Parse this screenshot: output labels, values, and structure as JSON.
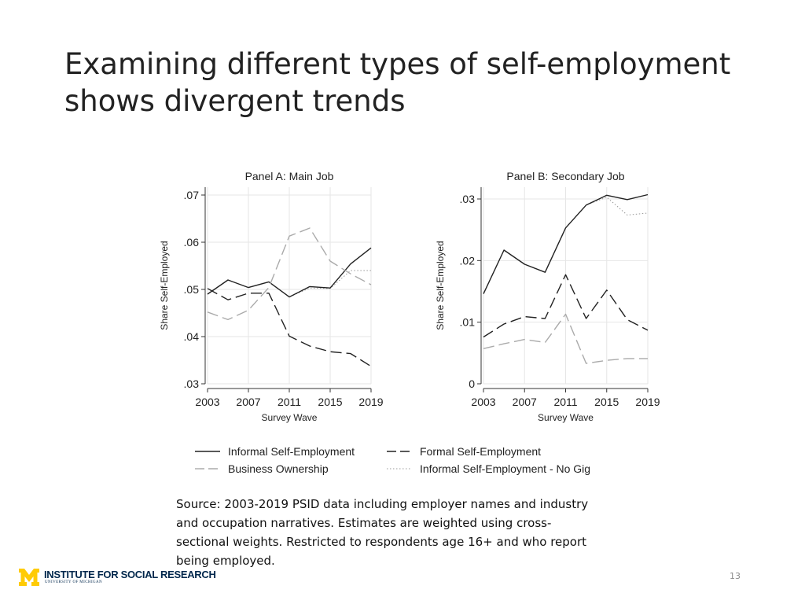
{
  "slide": {
    "title_line1": "Examining different types of self-employment",
    "title_line2": "shows divergent trends",
    "source_line1": "Source: 2003-2019 PSID data including employer names and industry",
    "source_line2": "and occupation narratives. Estimates are weighted using cross-",
    "source_line3": "sectional weights. Restricted to respondents age 16+ and who report",
    "source_line4": "being employed.",
    "page_number": "13",
    "logo_main": "INSTITUTE FOR SOCIAL RESEARCH",
    "logo_sub": "UNIVERSITY OF MICHIGAN",
    "logo_colors": {
      "maize": "#FFCB05",
      "blue": "#00274C"
    }
  },
  "chart_data": [
    {
      "type": "line",
      "title": "Panel A: Main Job",
      "xlabel": "Survey Wave",
      "ylabel": "Share Self-Employed",
      "x": [
        2003,
        2005,
        2007,
        2009,
        2011,
        2013,
        2015,
        2017,
        2019
      ],
      "xticks": [
        2003,
        2007,
        2011,
        2015,
        2019
      ],
      "xtick_labels": [
        "2003",
        "2007",
        "2011",
        "2015",
        "2019"
      ],
      "yticks": [
        0.03,
        0.04,
        0.05,
        0.06,
        0.07
      ],
      "ytick_labels": [
        ".03",
        ".04",
        ".05",
        ".06",
        ".07"
      ],
      "xlim": [
        2003,
        2019
      ],
      "ylim": [
        0.03,
        0.072
      ],
      "grid": true,
      "series": [
        {
          "name": "Informal Self-Employment",
          "style": "solid",
          "color": "#222222",
          "values": [
            0.049,
            0.052,
            0.0504,
            0.0516,
            0.0484,
            0.0506,
            0.0503,
            0.0554,
            0.0588
          ]
        },
        {
          "name": "Formal Self-Employment",
          "style": "dashed",
          "color": "#222222",
          "values": [
            0.0502,
            0.0478,
            0.0492,
            0.0492,
            0.0401,
            0.038,
            0.0368,
            0.0364,
            0.0337
          ]
        },
        {
          "name": "Business Ownership",
          "style": "dashed",
          "color": "#aaaaaa",
          "values": [
            0.0452,
            0.0436,
            0.0456,
            0.0504,
            0.0613,
            0.063,
            0.056,
            0.0533,
            0.051
          ]
        },
        {
          "name": "Informal Self-Employment - No Gig",
          "style": "dotted",
          "color": "#999999",
          "values": [
            0.049,
            0.052,
            0.0504,
            0.0516,
            0.0484,
            0.0503,
            0.0502,
            0.054,
            0.054
          ]
        }
      ]
    },
    {
      "type": "line",
      "title": "Panel B: Secondary Job",
      "xlabel": "Survey Wave",
      "ylabel": "Share Self-Employed",
      "x": [
        2003,
        2005,
        2007,
        2009,
        2011,
        2013,
        2015,
        2017,
        2019
      ],
      "xticks": [
        2003,
        2007,
        2011,
        2015,
        2019
      ],
      "xtick_labels": [
        "2003",
        "2007",
        "2011",
        "2015",
        "2019"
      ],
      "yticks": [
        0,
        0.01,
        0.02,
        0.03
      ],
      "ytick_labels": [
        "0",
        ".01",
        ".02",
        ".03"
      ],
      "xlim": [
        2003,
        2019
      ],
      "ylim": [
        0,
        0.032
      ],
      "grid": true,
      "series": [
        {
          "name": "Informal Self-Employment",
          "style": "solid",
          "color": "#222222",
          "values": [
            0.0146,
            0.0217,
            0.0194,
            0.0181,
            0.0253,
            0.029,
            0.0306,
            0.0299,
            0.0307
          ]
        },
        {
          "name": "Formal Self-Employment",
          "style": "dashed",
          "color": "#222222",
          "values": [
            0.0076,
            0.0097,
            0.0109,
            0.0106,
            0.0177,
            0.0106,
            0.0152,
            0.0104,
            0.0087
          ]
        },
        {
          "name": "Business Ownership",
          "style": "dashed",
          "color": "#aaaaaa",
          "values": [
            0.0057,
            0.0065,
            0.0072,
            0.0067,
            0.0113,
            0.0033,
            0.0038,
            0.0041,
            0.0041
          ]
        },
        {
          "name": "Informal Self-Employment - No Gig",
          "style": "dotted",
          "color": "#999999",
          "values": [
            0.0146,
            0.0217,
            0.0194,
            0.0181,
            0.0253,
            0.029,
            0.0303,
            0.0274,
            0.0277
          ]
        }
      ]
    }
  ],
  "legend": [
    {
      "label": "Informal Self-Employment",
      "style": "solid",
      "color": "#222222"
    },
    {
      "label": "Formal Self-Employment",
      "style": "dashed",
      "color": "#222222"
    },
    {
      "label": "Business Ownership",
      "style": "dashed",
      "color": "#aaaaaa"
    },
    {
      "label": "Informal Self-Employment - No Gig",
      "style": "dotted",
      "color": "#999999"
    }
  ]
}
